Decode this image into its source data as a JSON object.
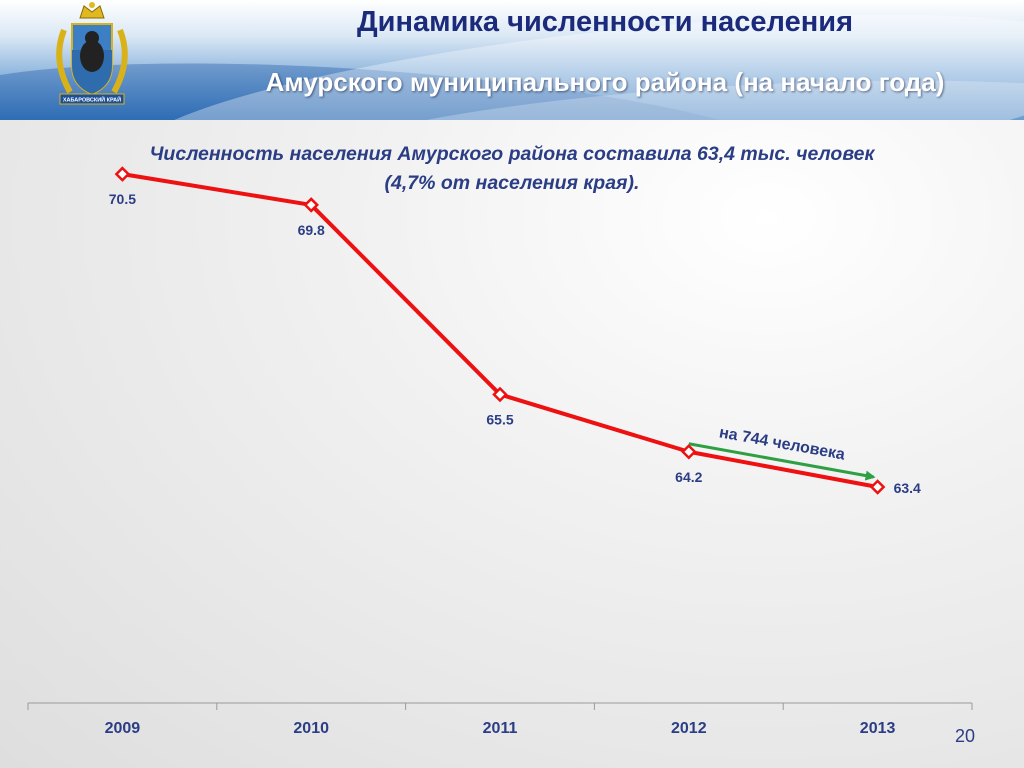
{
  "header": {
    "title_line1": "Динамика численности населения",
    "title_line2": "Амурского муниципального района (на начало года)",
    "emblem_text": "ХАБАРОВСКИЙ КРАЙ"
  },
  "subtitle": {
    "line1": "Численность населения Амурского района составила 63,4 тыс. человек",
    "line2": "(4,7% от населения края)."
  },
  "annotation": "на 744 человека",
  "page_number": "20",
  "colors": {
    "line": "#ee1111",
    "arrow": "#2ea043",
    "text": "#2b3d84"
  },
  "chart_data": {
    "type": "line",
    "categories": [
      "2009",
      "2010",
      "2011",
      "2012",
      "2013"
    ],
    "series": [
      {
        "values": [
          70.5,
          69.8,
          65.5,
          64.2,
          63.4
        ]
      }
    ],
    "data_labels": [
      "70.5",
      "69.8",
      "65.5",
      "64.2",
      "63.4"
    ],
    "ylim": [
      58.5,
      71.5
    ],
    "grid": false,
    "legend": "none"
  }
}
